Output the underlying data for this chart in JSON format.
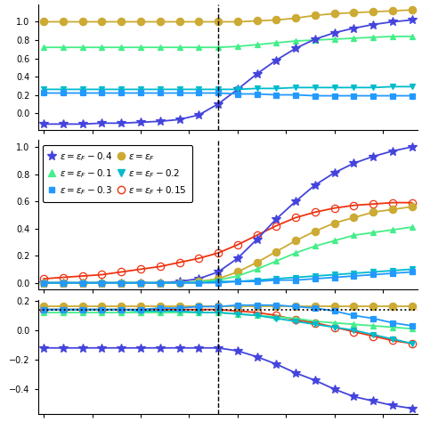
{
  "colors": {
    "blue_star": "#4444dd",
    "blue_sq": "#2299ff",
    "cyan_tri": "#00bbcc",
    "green_tri": "#44ee88",
    "gold": "#ccaa33",
    "red": "#ee3311"
  },
  "x": [
    0,
    1,
    2,
    3,
    4,
    5,
    6,
    7,
    8,
    9,
    10,
    11,
    12,
    13,
    14,
    15,
    16,
    17,
    18,
    19
  ],
  "vline": 9,
  "panel_a": {
    "gold": [
      1.0,
      1.0,
      1.0,
      1.0,
      1.0,
      1.0,
      1.0,
      1.0,
      1.0,
      1.0,
      1.0,
      1.01,
      1.02,
      1.04,
      1.07,
      1.09,
      1.1,
      1.11,
      1.12,
      1.13
    ],
    "green_tri": [
      0.72,
      0.72,
      0.72,
      0.72,
      0.72,
      0.72,
      0.72,
      0.72,
      0.72,
      0.72,
      0.73,
      0.75,
      0.77,
      0.79,
      0.8,
      0.81,
      0.82,
      0.83,
      0.84,
      0.84
    ],
    "blue_star": [
      -0.12,
      -0.12,
      -0.12,
      -0.11,
      -0.11,
      -0.1,
      -0.09,
      -0.07,
      -0.02,
      0.1,
      0.26,
      0.43,
      0.58,
      0.71,
      0.81,
      0.88,
      0.93,
      0.97,
      1.0,
      1.02
    ],
    "cyan_tri": [
      0.26,
      0.26,
      0.26,
      0.26,
      0.26,
      0.26,
      0.26,
      0.26,
      0.26,
      0.26,
      0.26,
      0.27,
      0.27,
      0.28,
      0.28,
      0.28,
      0.28,
      0.28,
      0.29,
      0.29
    ],
    "blue_sq": [
      0.22,
      0.22,
      0.22,
      0.22,
      0.22,
      0.22,
      0.22,
      0.22,
      0.22,
      0.22,
      0.21,
      0.21,
      0.2,
      0.2,
      0.19,
      0.19,
      0.19,
      0.19,
      0.19,
      0.19
    ]
  },
  "panel_b": {
    "red": [
      0.03,
      0.04,
      0.05,
      0.06,
      0.08,
      0.1,
      0.12,
      0.15,
      0.18,
      0.22,
      0.28,
      0.35,
      0.42,
      0.48,
      0.52,
      0.55,
      0.57,
      0.58,
      0.59,
      0.59
    ],
    "blue_star": [
      0.0,
      0.0,
      0.0,
      0.0,
      0.0,
      0.0,
      0.0,
      0.01,
      0.03,
      0.08,
      0.18,
      0.32,
      0.47,
      0.6,
      0.72,
      0.81,
      0.88,
      0.93,
      0.97,
      1.0
    ],
    "gold": [
      0.0,
      0.0,
      0.0,
      0.0,
      0.0,
      0.0,
      0.0,
      0.0,
      0.01,
      0.03,
      0.08,
      0.15,
      0.23,
      0.31,
      0.38,
      0.44,
      0.48,
      0.52,
      0.54,
      0.56
    ],
    "green_tri": [
      0.0,
      0.0,
      0.0,
      0.0,
      0.0,
      0.0,
      0.0,
      0.0,
      0.01,
      0.02,
      0.05,
      0.1,
      0.16,
      0.22,
      0.27,
      0.31,
      0.35,
      0.37,
      0.39,
      0.41
    ],
    "cyan_tri": [
      0.0,
      0.0,
      0.0,
      0.0,
      0.0,
      0.0,
      0.0,
      0.0,
      0.0,
      0.01,
      0.01,
      0.02,
      0.03,
      0.04,
      0.05,
      0.06,
      0.07,
      0.08,
      0.09,
      0.1
    ],
    "blue_sq": [
      0.0,
      0.0,
      0.0,
      0.0,
      0.0,
      0.0,
      0.0,
      0.0,
      0.0,
      0.0,
      0.01,
      0.01,
      0.02,
      0.02,
      0.03,
      0.04,
      0.05,
      0.06,
      0.07,
      0.08
    ]
  },
  "panel_c": {
    "gold": [
      0.16,
      0.16,
      0.16,
      0.16,
      0.16,
      0.16,
      0.16,
      0.16,
      0.16,
      0.16,
      0.16,
      0.16,
      0.16,
      0.16,
      0.16,
      0.16,
      0.16,
      0.16,
      0.16,
      0.16
    ],
    "blue_sq": [
      0.14,
      0.14,
      0.14,
      0.14,
      0.14,
      0.14,
      0.15,
      0.15,
      0.16,
      0.16,
      0.17,
      0.17,
      0.17,
      0.16,
      0.15,
      0.13,
      0.1,
      0.08,
      0.05,
      0.03
    ],
    "red": [
      0.14,
      0.14,
      0.14,
      0.14,
      0.14,
      0.14,
      0.14,
      0.14,
      0.14,
      0.14,
      0.13,
      0.12,
      0.1,
      0.07,
      0.05,
      0.02,
      -0.01,
      -0.04,
      -0.07,
      -0.09
    ],
    "green_tri": [
      0.12,
      0.12,
      0.12,
      0.12,
      0.12,
      0.12,
      0.12,
      0.12,
      0.12,
      0.12,
      0.11,
      0.1,
      0.09,
      0.08,
      0.06,
      0.05,
      0.04,
      0.03,
      0.02,
      0.01
    ],
    "cyan_tri": [
      0.14,
      0.14,
      0.14,
      0.14,
      0.14,
      0.13,
      0.13,
      0.13,
      0.12,
      0.12,
      0.11,
      0.1,
      0.08,
      0.06,
      0.04,
      0.02,
      0.0,
      -0.03,
      -0.06,
      -0.09
    ],
    "blue_star": [
      -0.12,
      -0.12,
      -0.12,
      -0.12,
      -0.12,
      -0.12,
      -0.12,
      -0.12,
      -0.12,
      -0.12,
      -0.14,
      -0.18,
      -0.23,
      -0.29,
      -0.34,
      -0.4,
      -0.45,
      -0.48,
      -0.51,
      -0.53
    ]
  },
  "hline_c": 0.14,
  "marker_sizes": {
    "blue_star": 7,
    "blue_sq": 5,
    "cyan_tri": 5,
    "green_tri": 5,
    "gold": 6,
    "red": 6
  }
}
